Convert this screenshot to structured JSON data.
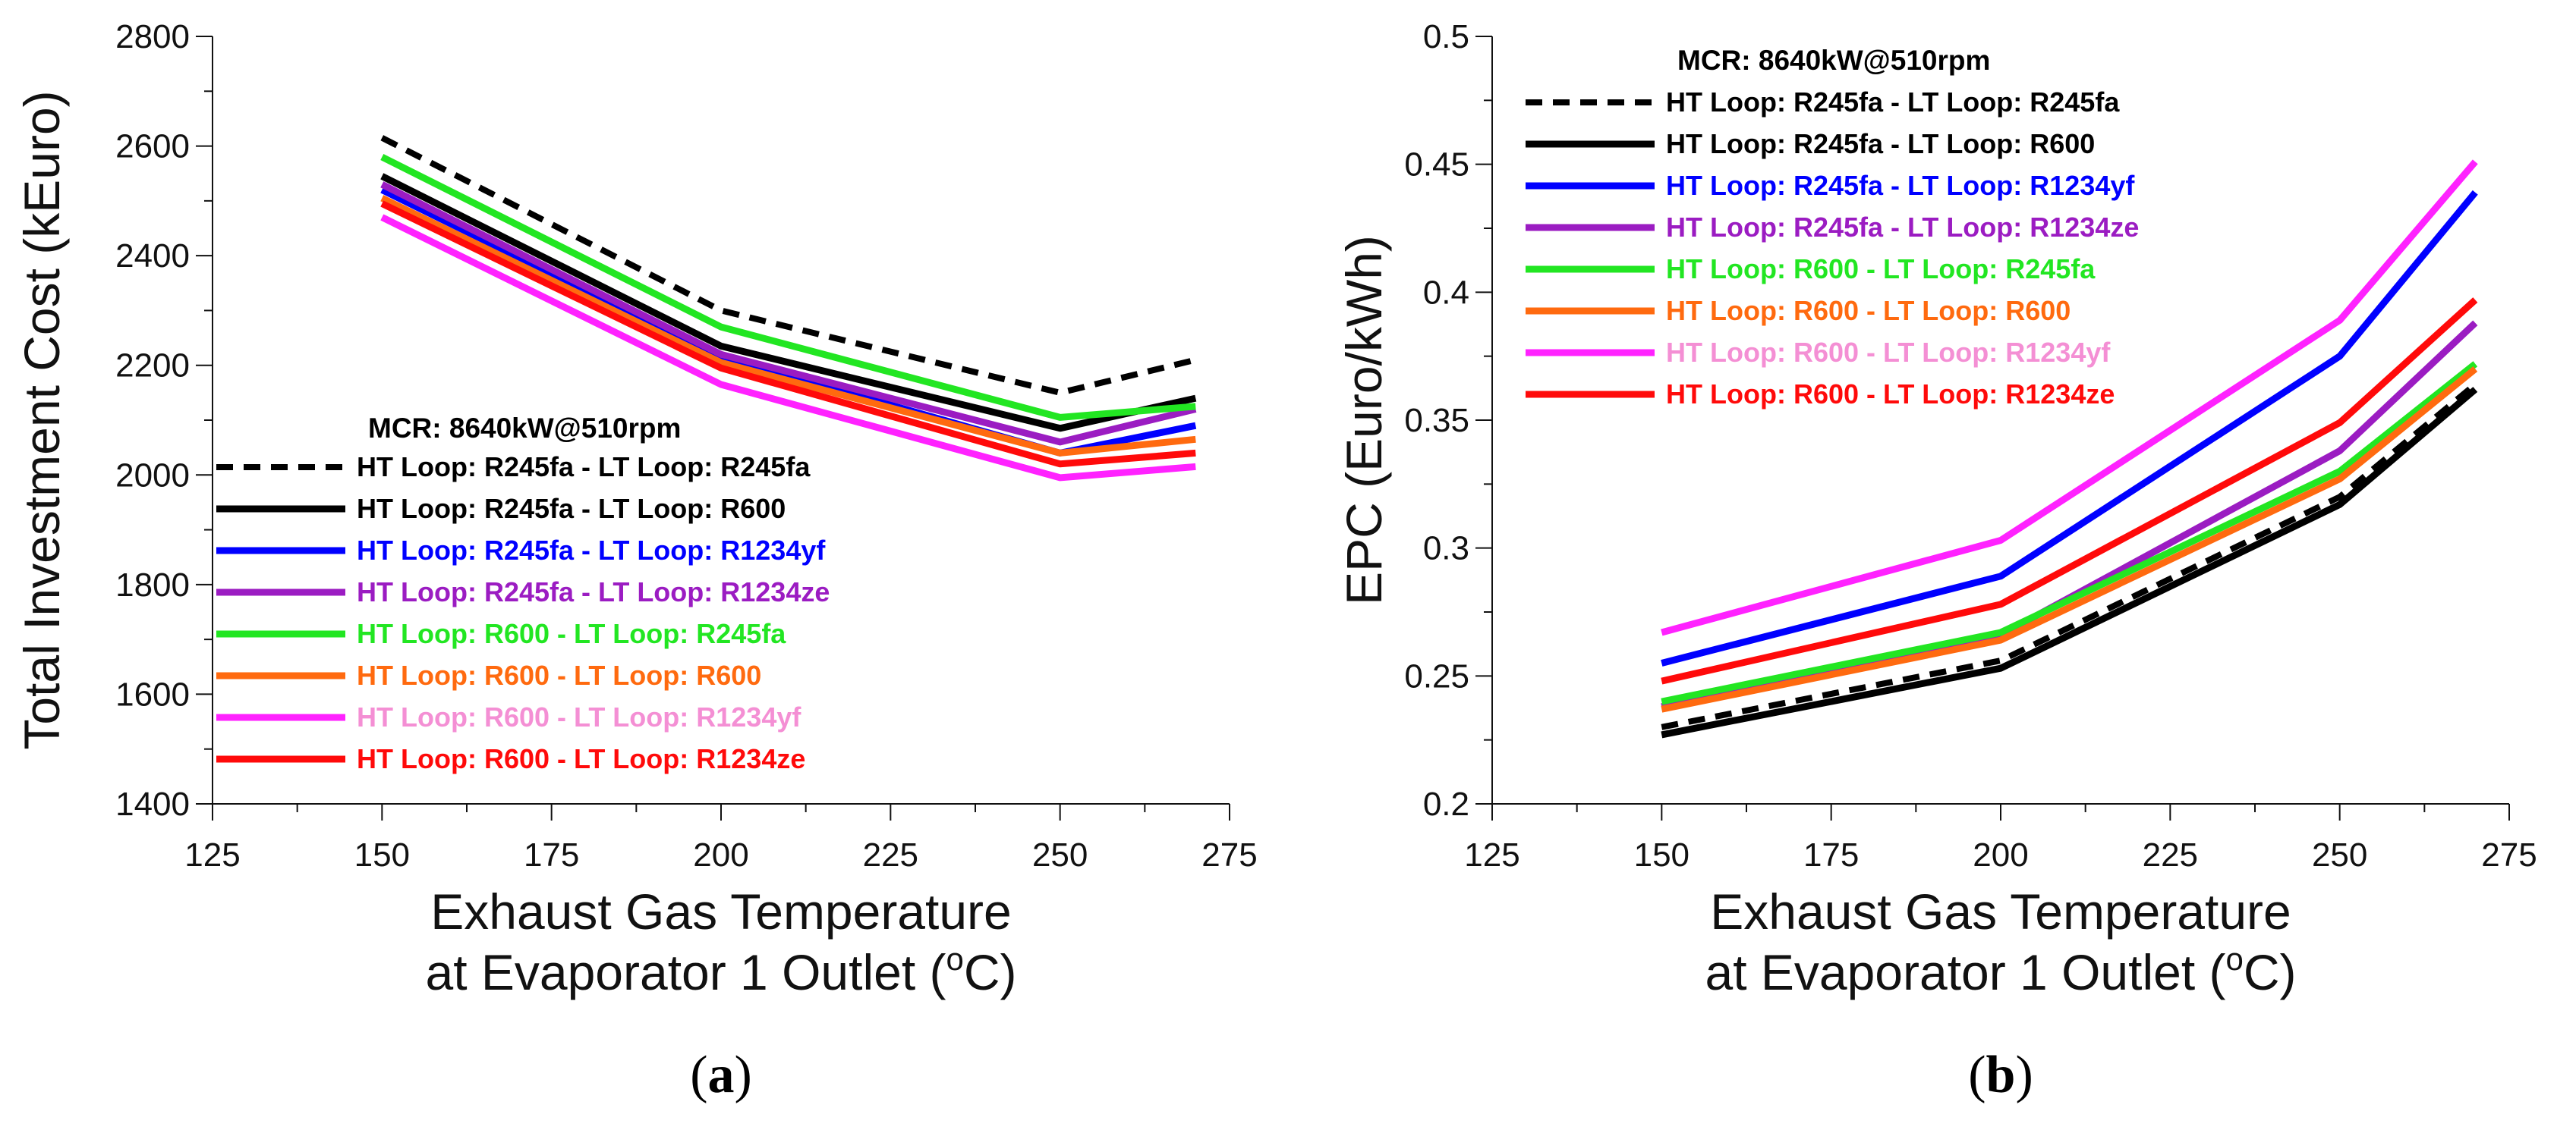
{
  "colors": {
    "axis": "#111111",
    "s1": "#000000",
    "s2": "#000000",
    "s3": "#0000ff",
    "s4": "#9b1cc2",
    "s5": "#22e622",
    "s6": "#ff6a0f",
    "s7": "#ff22ff",
    "s8": "#ff0a0a"
  },
  "chart_data": [
    {
      "type": "line",
      "panel_label_open": "(",
      "panel_label": "a",
      "panel_label_close": ")",
      "title": "",
      "xlabel_line1": "Exhaust Gas Temperature",
      "xlabel_line2_pre": "at Evaporator 1 Outlet (",
      "xlabel_line2_sup": "o",
      "xlabel_line2_post": "C)",
      "ylabel": "Total Investment Cost (kEuro)",
      "xlim": [
        125,
        275
      ],
      "ylim": [
        1400,
        2800
      ],
      "xticks": [
        "125",
        "150",
        "175",
        "200",
        "225",
        "250",
        "275"
      ],
      "yticks": [
        "1400",
        "1600",
        "1800",
        "2000",
        "2200",
        "2400",
        "2600",
        "2800"
      ],
      "legend_title": "MCR: 8640kW@510rpm",
      "legend_position": "lower-left",
      "x": [
        150,
        200,
        250,
        270
      ],
      "series": [
        {
          "name": "HT Loop: R245fa - LT Loop: R245fa",
          "values": [
            2615,
            2300,
            2150,
            2210
          ],
          "style": "dashed",
          "color": "#000000",
          "text_color": "#000000"
        },
        {
          "name": "HT Loop: R245fa - LT Loop: R600",
          "values": [
            2545,
            2235,
            2085,
            2140
          ],
          "style": "solid",
          "color": "#000000",
          "text_color": "#000000"
        },
        {
          "name": "HT Loop: R245fa - LT Loop: R1234yf",
          "values": [
            2520,
            2215,
            2040,
            2090
          ],
          "style": "solid",
          "color": "#0000ff",
          "text_color": "#0000ff"
        },
        {
          "name": "HT Loop: R245fa - LT Loop: R1234ze",
          "values": [
            2530,
            2220,
            2060,
            2120
          ],
          "style": "solid",
          "color": "#9b1cc2",
          "text_color": "#9b1cc2"
        },
        {
          "name": "HT Loop: R600 - LT Loop: R245fa",
          "values": [
            2580,
            2270,
            2105,
            2125
          ],
          "style": "solid",
          "color": "#22e622",
          "text_color": "#22e622"
        },
        {
          "name": "HT Loop: R600 - LT Loop: R600",
          "values": [
            2505,
            2205,
            2040,
            2065
          ],
          "style": "solid",
          "color": "#ff6a0f",
          "text_color": "#ff6a0f"
        },
        {
          "name": "HT Loop: R600 - LT Loop: R1234yf",
          "values": [
            2470,
            2165,
            1995,
            2015
          ],
          "style": "solid",
          "color": "#ff22ff",
          "text_color": "#f48fd4"
        },
        {
          "name": "HT Loop: R600 - LT Loop: R1234ze",
          "values": [
            2495,
            2195,
            2020,
            2040
          ],
          "style": "solid",
          "color": "#ff0a0a",
          "text_color": "#ff0a0a"
        }
      ]
    },
    {
      "type": "line",
      "panel_label_open": "(",
      "panel_label": "b",
      "panel_label_close": ")",
      "title": "",
      "xlabel_line1": "Exhaust Gas Temperature",
      "xlabel_line2_pre": "at Evaporator 1 Outlet (",
      "xlabel_line2_sup": "o",
      "xlabel_line2_post": "C)",
      "ylabel": "EPC (Euro/kWh)",
      "xlim": [
        125,
        275
      ],
      "ylim": [
        0.2,
        0.5
      ],
      "xticks": [
        "125",
        "150",
        "175",
        "200",
        "225",
        "250",
        "275"
      ],
      "yticks": [
        "0.2",
        "0.25",
        "0.3",
        "0.35",
        "0.4",
        "0.45",
        "0.5"
      ],
      "legend_title": "MCR: 8640kW@510rpm",
      "legend_position": "upper-left",
      "x": [
        150,
        200,
        250,
        270
      ],
      "series": [
        {
          "name": "HT Loop: R245fa - LT Loop: R245fa",
          "values": [
            0.23,
            0.256,
            0.32,
            0.364
          ],
          "style": "dashed",
          "color": "#000000",
          "text_color": "#000000"
        },
        {
          "name": "HT Loop: R245fa - LT Loop: R600",
          "values": [
            0.227,
            0.253,
            0.317,
            0.362
          ],
          "style": "solid",
          "color": "#000000",
          "text_color": "#000000"
        },
        {
          "name": "HT Loop: R245fa - LT Loop: R1234yf",
          "values": [
            0.255,
            0.289,
            0.375,
            0.439
          ],
          "style": "solid",
          "color": "#0000ff",
          "text_color": "#0000ff"
        },
        {
          "name": "HT Loop: R245fa - LT Loop: R1234ze",
          "values": [
            0.238,
            0.266,
            0.338,
            0.388
          ],
          "style": "solid",
          "color": "#9b1cc2",
          "text_color": "#9b1cc2"
        },
        {
          "name": "HT Loop: R600 - LT Loop: R245fa",
          "values": [
            0.24,
            0.267,
            0.33,
            0.372
          ],
          "style": "solid",
          "color": "#22e622",
          "text_color": "#22e622"
        },
        {
          "name": "HT Loop: R600 - LT Loop: R600",
          "values": [
            0.237,
            0.264,
            0.327,
            0.37
          ],
          "style": "solid",
          "color": "#ff6a0f",
          "text_color": "#ff6a0f"
        },
        {
          "name": "HT Loop: R600 - LT Loop: R1234yf",
          "values": [
            0.267,
            0.303,
            0.389,
            0.451
          ],
          "style": "solid",
          "color": "#ff22ff",
          "text_color": "#f48fd4"
        },
        {
          "name": "HT Loop: R600 - LT Loop: R1234ze",
          "values": [
            0.248,
            0.278,
            0.349,
            0.397
          ],
          "style": "solid",
          "color": "#ff0a0a",
          "text_color": "#ff0a0a"
        }
      ]
    }
  ]
}
